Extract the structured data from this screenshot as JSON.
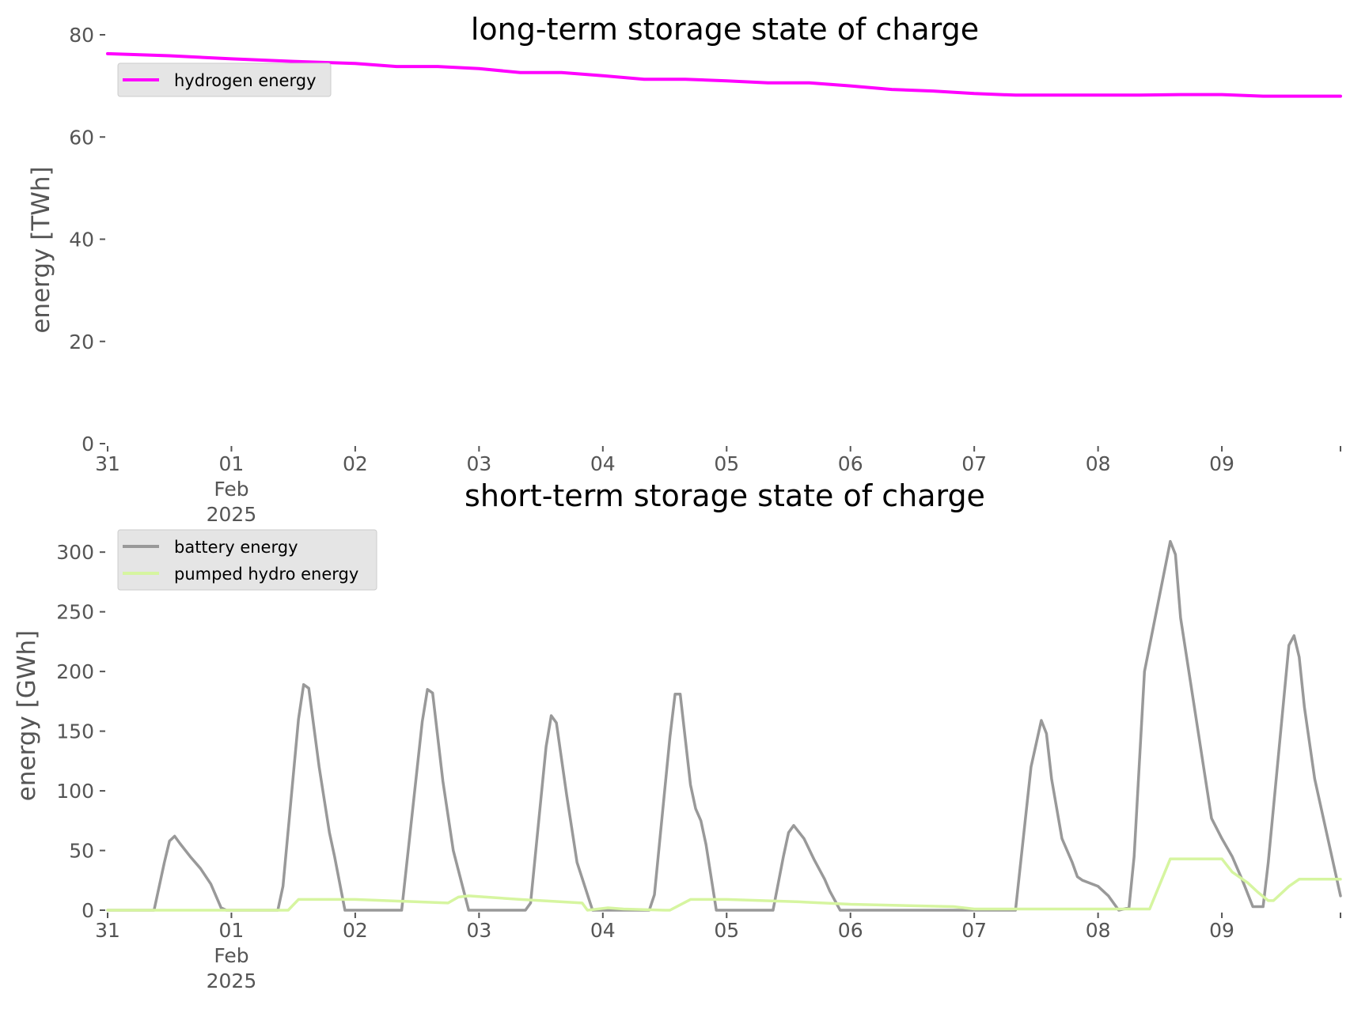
{
  "chart_data": [
    {
      "type": "line",
      "title": "long-term storage state of charge",
      "ylabel": "energy [TWh]",
      "xlabel": "",
      "xlim": [
        "2025-01-31T00:00",
        "2025-02-09T23:00"
      ],
      "ylim": [
        0,
        80
      ],
      "yticks": [
        0,
        20,
        40,
        60,
        80
      ],
      "xtick_labels": [
        {
          "x": "2025-01-31T00:00",
          "lines": [
            "31"
          ]
        },
        {
          "x": "2025-02-01T00:00",
          "lines": [
            "01",
            "Feb",
            "2025"
          ]
        },
        {
          "x": "2025-02-02T00:00",
          "lines": [
            "02"
          ]
        },
        {
          "x": "2025-02-03T00:00",
          "lines": [
            "03"
          ]
        },
        {
          "x": "2025-02-04T00:00",
          "lines": [
            "04"
          ]
        },
        {
          "x": "2025-02-05T00:00",
          "lines": [
            "05"
          ]
        },
        {
          "x": "2025-02-06T00:00",
          "lines": [
            "06"
          ]
        },
        {
          "x": "2025-02-07T00:00",
          "lines": [
            "07"
          ]
        },
        {
          "x": "2025-02-08T00:00",
          "lines": [
            "08"
          ]
        },
        {
          "x": "2025-02-09T00:00",
          "lines": [
            "09"
          ]
        }
      ],
      "grid": false,
      "legend_position": "upper-left",
      "series": [
        {
          "name": "hydrogen energy",
          "color": "#ff00ff",
          "x": [
            "2025-01-31T00:00",
            "2025-01-31T12:00",
            "2025-02-01T00:00",
            "2025-02-01T12:00",
            "2025-02-02T00:00",
            "2025-02-02T08:00",
            "2025-02-02T16:00",
            "2025-02-03T00:00",
            "2025-02-03T08:00",
            "2025-02-03T16:00",
            "2025-02-04T00:00",
            "2025-02-04T08:00",
            "2025-02-04T16:00",
            "2025-02-05T00:00",
            "2025-02-05T08:00",
            "2025-02-05T16:00",
            "2025-02-06T00:00",
            "2025-02-06T08:00",
            "2025-02-06T16:00",
            "2025-02-07T00:00",
            "2025-02-07T08:00",
            "2025-02-07T16:00",
            "2025-02-08T00:00",
            "2025-02-08T08:00",
            "2025-02-08T16:00",
            "2025-02-09T00:00",
            "2025-02-09T08:00",
            "2025-02-09T16:00",
            "2025-02-09T23:00"
          ],
          "values": [
            76.3,
            75.9,
            75.3,
            74.8,
            74.4,
            73.8,
            73.8,
            73.4,
            72.6,
            72.6,
            72.0,
            71.3,
            71.3,
            71.0,
            70.6,
            70.6,
            70.0,
            69.3,
            69.0,
            68.5,
            68.2,
            68.2,
            68.2,
            68.2,
            68.3,
            68.3,
            68.0,
            68.0,
            68.0
          ]
        }
      ]
    },
    {
      "type": "line",
      "title": "short-term storage state of charge",
      "ylabel": "energy [GWh]",
      "xlabel": "",
      "xlim": [
        "2025-01-31T00:00",
        "2025-02-09T23:00"
      ],
      "ylim": [
        0,
        320
      ],
      "yticks": [
        0,
        50,
        100,
        150,
        200,
        250,
        300
      ],
      "xtick_labels": [
        {
          "x": "2025-01-31T00:00",
          "lines": [
            "31"
          ]
        },
        {
          "x": "2025-02-01T00:00",
          "lines": [
            "01",
            "Feb",
            "2025"
          ]
        },
        {
          "x": "2025-02-02T00:00",
          "lines": [
            "02"
          ]
        },
        {
          "x": "2025-02-03T00:00",
          "lines": [
            "03"
          ]
        },
        {
          "x": "2025-02-04T00:00",
          "lines": [
            "04"
          ]
        },
        {
          "x": "2025-02-05T00:00",
          "lines": [
            "05"
          ]
        },
        {
          "x": "2025-02-06T00:00",
          "lines": [
            "06"
          ]
        },
        {
          "x": "2025-02-07T00:00",
          "lines": [
            "07"
          ]
        },
        {
          "x": "2025-02-08T00:00",
          "lines": [
            "08"
          ]
        },
        {
          "x": "2025-02-09T00:00",
          "lines": [
            "09"
          ]
        }
      ],
      "grid": false,
      "legend_position": "upper-left",
      "series": [
        {
          "name": "battery energy",
          "color": "#999999",
          "x": [
            "2025-01-31T00:00",
            "2025-01-31T09:00",
            "2025-01-31T11:00",
            "2025-01-31T12:00",
            "2025-01-31T13:00",
            "2025-01-31T14:00",
            "2025-01-31T16:00",
            "2025-01-31T18:00",
            "2025-01-31T20:00",
            "2025-01-31T22:00",
            "2025-01-31T23:00",
            "2025-02-01T00:00",
            "2025-02-01T09:00",
            "2025-02-01T10:00",
            "2025-02-01T13:00",
            "2025-02-01T14:00",
            "2025-02-01T15:00",
            "2025-02-01T17:00",
            "2025-02-01T19:00",
            "2025-02-01T20:00",
            "2025-02-01T22:00",
            "2025-02-02T09:00",
            "2025-02-02T13:00",
            "2025-02-02T14:00",
            "2025-02-02T15:00",
            "2025-02-02T17:00",
            "2025-02-02T19:00",
            "2025-02-02T22:00",
            "2025-02-03T09:00",
            "2025-02-03T10:00",
            "2025-02-03T13:00",
            "2025-02-03T14:00",
            "2025-02-03T15:00",
            "2025-02-03T17:00",
            "2025-02-03T19:00",
            "2025-02-03T22:00",
            "2025-02-04T09:00",
            "2025-02-04T10:00",
            "2025-02-04T13:00",
            "2025-02-04T14:00",
            "2025-02-04T15:00",
            "2025-02-04T17:00",
            "2025-02-04T18:00",
            "2025-02-04T19:00",
            "2025-02-04T20:00",
            "2025-02-04T22:00",
            "2025-02-05T09:00",
            "2025-02-05T11:00",
            "2025-02-05T12:00",
            "2025-02-05T13:00",
            "2025-02-05T15:00",
            "2025-02-05T17:00",
            "2025-02-05T19:00",
            "2025-02-05T20:00",
            "2025-02-05T22:00",
            "2025-02-07T08:00",
            "2025-02-07T11:00",
            "2025-02-07T13:00",
            "2025-02-07T14:00",
            "2025-02-07T15:00",
            "2025-02-07T17:00",
            "2025-02-07T19:00",
            "2025-02-07T20:00",
            "2025-02-07T21:00",
            "2025-02-08T00:00",
            "2025-02-08T02:00",
            "2025-02-08T04:00",
            "2025-02-08T06:00",
            "2025-02-08T07:00",
            "2025-02-08T09:00",
            "2025-02-08T14:00",
            "2025-02-08T15:00",
            "2025-02-08T16:00",
            "2025-02-08T22:00",
            "2025-02-09T00:00",
            "2025-02-09T02:00",
            "2025-02-09T04:00",
            "2025-02-09T06:00",
            "2025-02-09T08:00",
            "2025-02-09T09:00",
            "2025-02-09T13:00",
            "2025-02-09T14:00",
            "2025-02-09T15:00",
            "2025-02-09T16:00",
            "2025-02-09T18:00",
            "2025-02-09T23:00"
          ],
          "values": [
            0,
            0,
            40,
            58,
            62,
            56,
            45,
            35,
            22,
            2,
            0,
            0,
            0,
            20,
            160,
            189,
            186,
            120,
            65,
            45,
            0,
            0,
            158,
            185,
            182,
            108,
            50,
            0,
            0,
            6,
            137,
            163,
            157,
            96,
            40,
            0,
            0,
            13,
            145,
            181,
            181,
            105,
            85,
            75,
            55,
            0,
            0,
            45,
            65,
            71,
            60,
            42,
            26,
            16,
            0,
            0,
            120,
            159,
            148,
            110,
            60,
            40,
            28,
            25,
            20,
            12,
            0,
            2,
            45,
            200,
            309,
            298,
            245,
            77,
            60,
            45,
            25,
            3,
            3,
            40,
            222,
            230,
            212,
            170,
            110,
            12
          ]
        },
        {
          "name": "pumped hydro energy",
          "color": "#d6f5a0",
          "x": [
            "2025-01-31T00:00",
            "2025-02-01T11:00",
            "2025-02-01T13:00",
            "2025-02-02T00:00",
            "2025-02-02T18:00",
            "2025-02-02T20:00",
            "2025-02-02T22:00",
            "2025-02-03T08:00",
            "2025-02-03T20:00",
            "2025-02-03T21:00",
            "2025-02-04T01:00",
            "2025-02-04T04:00",
            "2025-02-04T12:00",
            "2025-02-04T13:00",
            "2025-02-04T17:00",
            "2025-02-05T00:00",
            "2025-02-05T14:00",
            "2025-02-06T00:00",
            "2025-02-06T20:00",
            "2025-02-07T00:00",
            "2025-02-08T00:00",
            "2025-02-08T10:00",
            "2025-02-08T14:00",
            "2025-02-08T18:00",
            "2025-02-09T00:00",
            "2025-02-09T02:00",
            "2025-02-09T05:00",
            "2025-02-09T07:00",
            "2025-02-09T09:00",
            "2025-02-09T10:00",
            "2025-02-09T13:00",
            "2025-02-09T15:00",
            "2025-02-09T23:00"
          ],
          "values": [
            0,
            0,
            9,
            9,
            6,
            11,
            12,
            9,
            6,
            0,
            2,
            1,
            0,
            0,
            9,
            9,
            7,
            5,
            3,
            1,
            1,
            1,
            43,
            43,
            43,
            32,
            23,
            15,
            8,
            8,
            20,
            26,
            26
          ]
        }
      ]
    }
  ]
}
